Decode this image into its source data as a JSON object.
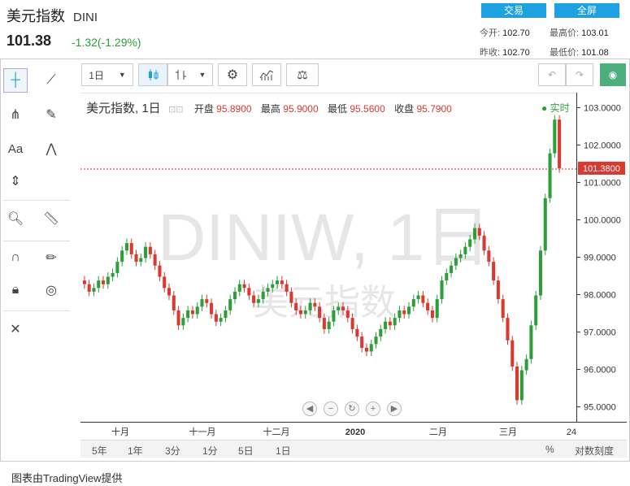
{
  "header": {
    "name": "美元指数",
    "code": "DINI",
    "price": "101.38",
    "change": "-1.32(-1.29%)",
    "trade_btn": "交易",
    "fullscreen_btn": "全屏",
    "stats": {
      "open_label": "今开:",
      "open": "102.70",
      "high_label": "最高价:",
      "high": "103.01",
      "prev_label": "昨收:",
      "prev": "102.70",
      "low_label": "最低价:",
      "low": "101.08"
    }
  },
  "toolbar": {
    "interval": "1日"
  },
  "legend": {
    "name": "美元指数, 1日",
    "open_label": "开盘",
    "open": "95.8900",
    "high_label": "最高",
    "high": "95.9000",
    "low_label": "最低",
    "low": "95.5600",
    "close_label": "收盘",
    "close": "95.7900",
    "realtime": "实时"
  },
  "watermark": {
    "line1": "DINIW, 1日",
    "line2": "美元指数"
  },
  "y_ticks": [
    "103.0000",
    "102.0000",
    "101.0000",
    "100.0000",
    "99.0000",
    "98.0000",
    "97.0000",
    "96.0000",
    "95.0000"
  ],
  "last_price_label": "101.3800",
  "x_ticks": [
    {
      "label": "十月"
    },
    {
      "label": "十一月"
    },
    {
      "label": "十二月"
    },
    {
      "label": "2020"
    },
    {
      "label": "二月"
    },
    {
      "label": "三月"
    },
    {
      "label": "24"
    }
  ],
  "ranges": [
    "5年",
    "1年",
    "3分",
    "1分",
    "5日",
    "1日"
  ],
  "ranges_right": {
    "pct": "%",
    "log": "对数刻度"
  },
  "footer": "图表由TradingView提供",
  "colors": {
    "up": "#2e9e3a",
    "down": "#d9392f",
    "accent": "#1da1e0"
  },
  "chart_data": {
    "type": "candlestick",
    "ylim": [
      94.6,
      103.4
    ],
    "closes": [
      98.3,
      98.1,
      98.2,
      98.4,
      98.3,
      98.5,
      98.6,
      98.9,
      99.2,
      99.4,
      99.1,
      98.9,
      99.0,
      99.3,
      99.1,
      98.8,
      98.5,
      98.2,
      98.0,
      97.6,
      97.2,
      97.4,
      97.6,
      97.5,
      97.7,
      97.9,
      97.8,
      97.5,
      97.3,
      97.4,
      97.6,
      97.9,
      98.1,
      98.3,
      98.2,
      98.0,
      97.8,
      97.9,
      98.1,
      98.2,
      98.3,
      98.4,
      98.3,
      98.1,
      97.8,
      97.6,
      97.5,
      97.6,
      97.8,
      97.7,
      97.4,
      97.1,
      97.3,
      97.6,
      97.7,
      97.6,
      97.4,
      97.1,
      96.9,
      96.6,
      96.5,
      96.7,
      96.9,
      97.1,
      97.3,
      97.2,
      97.4,
      97.6,
      97.5,
      97.7,
      97.9,
      98.0,
      97.8,
      97.6,
      97.4,
      97.9,
      98.4,
      98.6,
      98.8,
      99.0,
      99.1,
      99.3,
      99.5,
      99.8,
      99.6,
      99.2,
      98.9,
      98.4,
      97.9,
      97.4,
      96.8,
      96.1,
      95.2,
      96.0,
      96.3,
      97.2,
      98.0,
      99.2,
      100.6,
      101.8,
      102.7,
      101.4
    ]
  }
}
